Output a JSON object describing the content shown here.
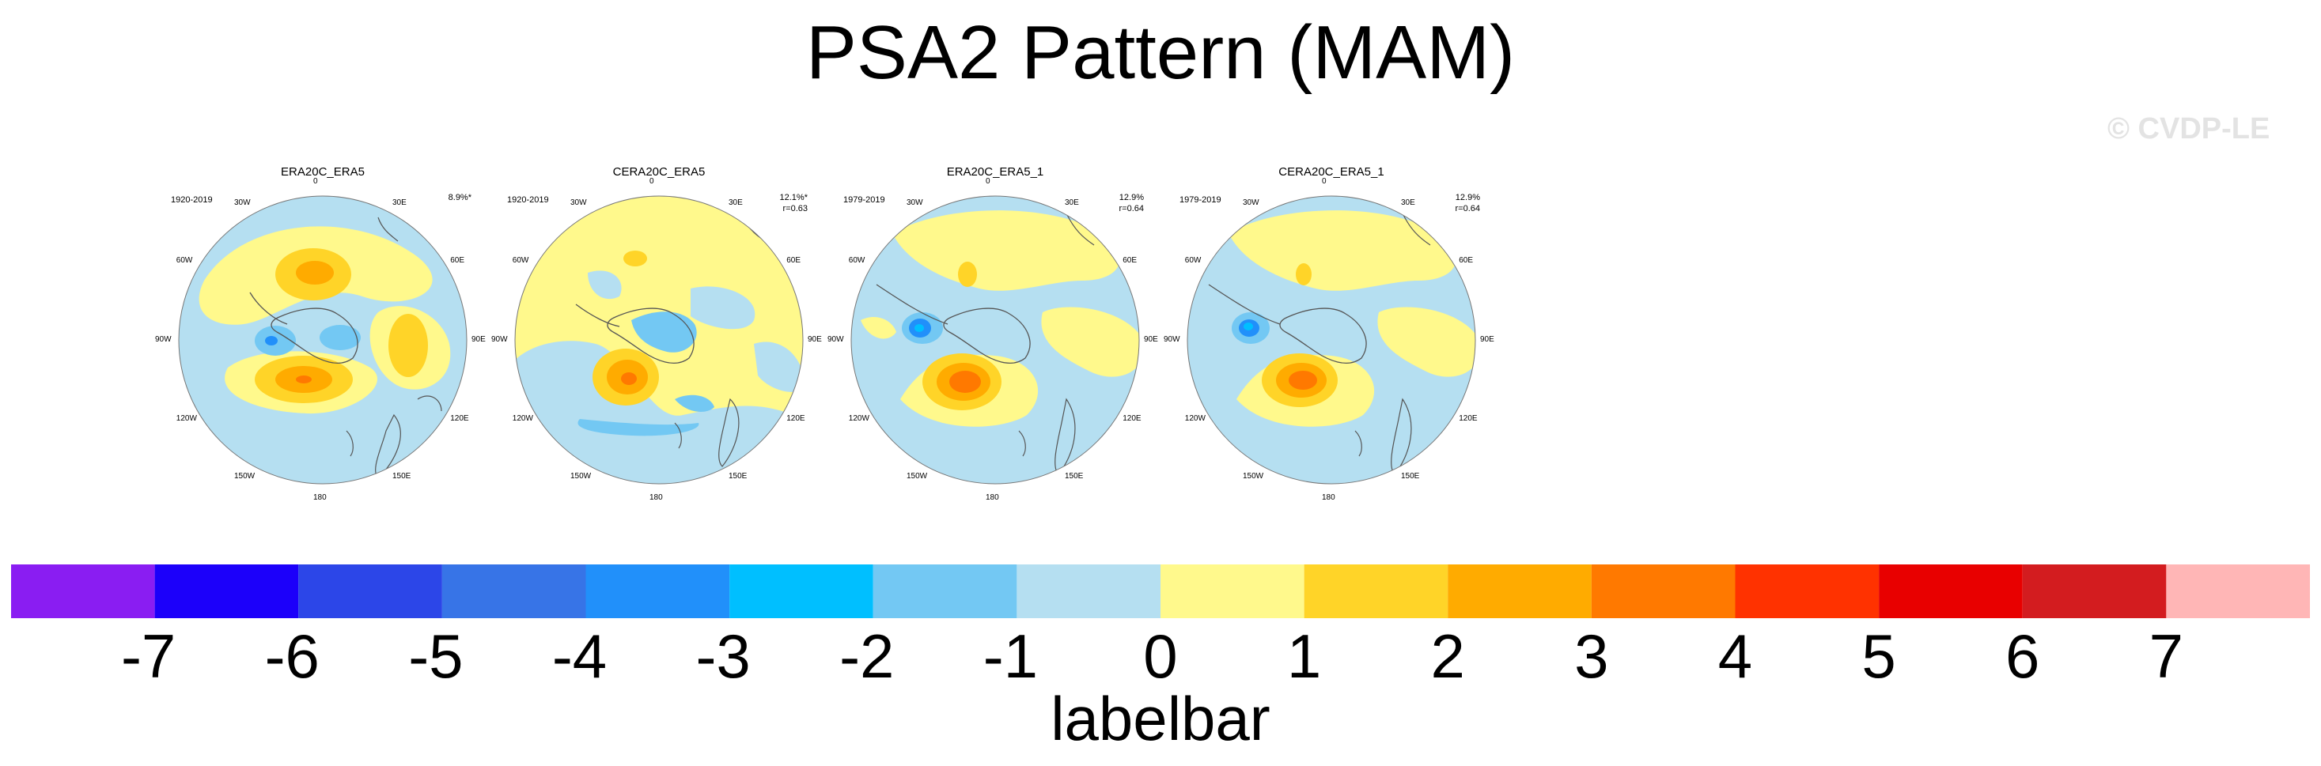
{
  "title": "PSA2 Pattern (MAM)",
  "watermark": "© CVDP-LE",
  "lon_labels": [
    "0",
    "30E",
    "60E",
    "90E",
    "120E",
    "150E",
    "180",
    "150W",
    "120W",
    "90W",
    "60W",
    "30W"
  ],
  "panels": [
    {
      "title": "ERA20C_ERA5",
      "period": "1920-2019",
      "pct": "8.9%*",
      "corr": ""
    },
    {
      "title": "CERA20C_ERA5",
      "period": "1920-2019",
      "pct": "12.1%*",
      "corr": "r=0.63"
    },
    {
      "title": "ERA20C_ERA5_1",
      "period": "1979-2019",
      "pct": "12.9%",
      "corr": "r=0.64"
    },
    {
      "title": "CERA20C_ERA5_1",
      "period": "1979-2019",
      "pct": "12.9%",
      "corr": "r=0.64"
    }
  ],
  "colors": {
    "levels": [
      "#8a1df2",
      "#1c00fa",
      "#2c46e8",
      "#3774e7",
      "#2190fa",
      "#00bfff",
      "#73c8f3",
      "#b5dff1",
      "#fff98c",
      "#ffd428",
      "#ffab00",
      "#ff7900",
      "#ff3200",
      "#e80000",
      "#d31c1f",
      "#ffb6b6"
    ],
    "land": "#555555"
  },
  "labelbar": {
    "ticks": [
      "-7",
      "-6",
      "-5",
      "-4",
      "-3",
      "-2",
      "-1",
      "0",
      "1",
      "2",
      "3",
      "4",
      "5",
      "6",
      "7"
    ],
    "title": "labelbar"
  }
}
